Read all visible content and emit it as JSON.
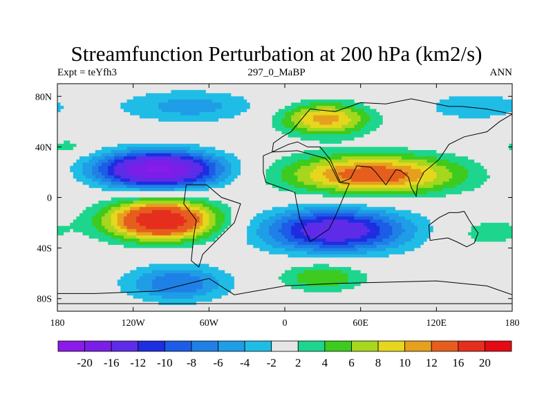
{
  "chart_data": {
    "type": "heatmap",
    "title": "Streamfunction Perturbation at 200 hPa (km2/s)",
    "subtitle_left": "Expt = teYfh3",
    "subtitle_center": "297_0_MaBP",
    "subtitle_right": "ANN",
    "xlim": [
      -180,
      180
    ],
    "ylim": [
      -90,
      90
    ],
    "x_ticks": [
      {
        "value": -180,
        "label": "180"
      },
      {
        "value": -120,
        "label": "120W"
      },
      {
        "value": -60,
        "label": "60W"
      },
      {
        "value": 0,
        "label": "0"
      },
      {
        "value": 60,
        "label": "60E"
      },
      {
        "value": 120,
        "label": "120E"
      },
      {
        "value": 180,
        "label": "180"
      }
    ],
    "y_ticks": [
      {
        "value": 80,
        "label": "80N"
      },
      {
        "value": 40,
        "label": "40N"
      },
      {
        "value": 0,
        "label": "0"
      },
      {
        "value": -40,
        "label": "40S"
      },
      {
        "value": -80,
        "label": "80S"
      }
    ],
    "contour_levels": [
      -20,
      -16,
      -12,
      -10,
      -8,
      -6,
      -4,
      -2,
      2,
      4,
      6,
      8,
      10,
      12,
      16,
      20
    ],
    "colorbar_labels": [
      "-20",
      "-16",
      "-12",
      "-10",
      "-8",
      "-6",
      "-4",
      "-2",
      "2",
      "4",
      "6",
      "8",
      "10",
      "12",
      "16",
      "20"
    ],
    "colors": [
      "#8A1BE8",
      "#7A1FE8",
      "#5E2CE8",
      "#1E2DE0",
      "#1C5CE6",
      "#1F80E6",
      "#1F9DE6",
      "#1FBDE6",
      "#E6E6E6",
      "#1ED58E",
      "#3CCB1E",
      "#A6D61E",
      "#E6D61E",
      "#E6A01E",
      "#E65E1E",
      "#E62E1E",
      "#E60A14"
    ],
    "centers": [
      {
        "lon": -100,
        "lat": 22,
        "amp": -21,
        "sx": 34,
        "sy": 10
      },
      {
        "lon": 40,
        "lat": -26,
        "amp": -15,
        "sx": 40,
        "sy": 12
      },
      {
        "lon": -75,
        "lat": 72,
        "amp": -5,
        "sx": 38,
        "sy": 9
      },
      {
        "lon": -85,
        "lat": -68,
        "amp": -8,
        "sx": 28,
        "sy": 10
      },
      {
        "lon": 150,
        "lat": 72,
        "amp": -3,
        "sx": 35,
        "sy": 10
      },
      {
        "lon": 70,
        "lat": 18,
        "amp": 14,
        "sx": 48,
        "sy": 11
      },
      {
        "lon": -98,
        "lat": -18,
        "amp": 20,
        "sx": 30,
        "sy": 11
      },
      {
        "lon": 32,
        "lat": 62,
        "amp": 11,
        "sx": 25,
        "sy": 9
      },
      {
        "lon": 30,
        "lat": -63,
        "amp": 6,
        "sx": 24,
        "sy": 8
      },
      {
        "lon": 160,
        "lat": -28,
        "amp": 3,
        "sx": 22,
        "sy": 9
      },
      {
        "lon": -172,
        "lat": 40,
        "amp": 3,
        "sx": 12,
        "sy": 5
      }
    ],
    "continents": [
      {
        "name": "Africa",
        "points": [
          [
            -17,
            33
          ],
          [
            -10,
            36
          ],
          [
            10,
            37
          ],
          [
            32,
            31
          ],
          [
            35,
            28
          ],
          [
            43,
            12
          ],
          [
            51,
            11
          ],
          [
            40,
            -15
          ],
          [
            35,
            -25
          ],
          [
            20,
            -35
          ],
          [
            17,
            -28
          ],
          [
            12,
            -17
          ],
          [
            9,
            -2
          ],
          [
            8,
            4
          ],
          [
            -15,
            12
          ],
          [
            -17,
            20
          ]
        ]
      },
      {
        "name": "Eurasia",
        "points": [
          [
            -10,
            36
          ],
          [
            -9,
            43
          ],
          [
            -2,
            48
          ],
          [
            5,
            52
          ],
          [
            10,
            58
          ],
          [
            20,
            70
          ],
          [
            40,
            68
          ],
          [
            60,
            75
          ],
          [
            80,
            74
          ],
          [
            100,
            78
          ],
          [
            130,
            72
          ],
          [
            140,
            72
          ],
          [
            160,
            70
          ],
          [
            180,
            66
          ],
          [
            170,
            60
          ],
          [
            160,
            52
          ],
          [
            142,
            48
          ],
          [
            130,
            42
          ],
          [
            122,
            30
          ],
          [
            110,
            20
          ],
          [
            105,
            10
          ],
          [
            104,
            1
          ],
          [
            100,
            8
          ],
          [
            98,
            16
          ],
          [
            92,
            21
          ],
          [
            88,
            22
          ],
          [
            80,
            10
          ],
          [
            72,
            20
          ],
          [
            68,
            24
          ],
          [
            57,
            25
          ],
          [
            52,
            15
          ],
          [
            44,
            12
          ],
          [
            36,
            30
          ],
          [
            28,
            40
          ],
          [
            18,
            40
          ],
          [
            10,
            44
          ],
          [
            3,
            42
          ]
        ]
      },
      {
        "name": "South America",
        "points": [
          [
            -78,
            10
          ],
          [
            -62,
            10
          ],
          [
            -50,
            0
          ],
          [
            -35,
            -5
          ],
          [
            -40,
            -20
          ],
          [
            -48,
            -28
          ],
          [
            -58,
            -38
          ],
          [
            -65,
            -45
          ],
          [
            -68,
            -55
          ],
          [
            -74,
            -50
          ],
          [
            -72,
            -30
          ],
          [
            -70,
            -18
          ],
          [
            -80,
            -5
          ]
        ]
      },
      {
        "name": "Australia",
        "points": [
          [
            114,
            -22
          ],
          [
            122,
            -16
          ],
          [
            130,
            -12
          ],
          [
            137,
            -12
          ],
          [
            142,
            -11
          ],
          [
            146,
            -18
          ],
          [
            150,
            -24
          ],
          [
            153,
            -28
          ],
          [
            150,
            -36
          ],
          [
            144,
            -39
          ],
          [
            136,
            -35
          ],
          [
            129,
            -32
          ],
          [
            115,
            -34
          ]
        ]
      },
      {
        "name": "Antarctica",
        "points": [
          [
            -180,
            -84
          ],
          [
            -180,
            -76
          ],
          [
            -150,
            -76
          ],
          [
            -100,
            -74
          ],
          [
            -60,
            -64
          ],
          [
            -40,
            -77
          ],
          [
            0,
            -70
          ],
          [
            40,
            -68
          ],
          [
            80,
            -67
          ],
          [
            120,
            -66
          ],
          [
            160,
            -70
          ],
          [
            180,
            -77
          ],
          [
            180,
            -84
          ]
        ]
      }
    ]
  }
}
